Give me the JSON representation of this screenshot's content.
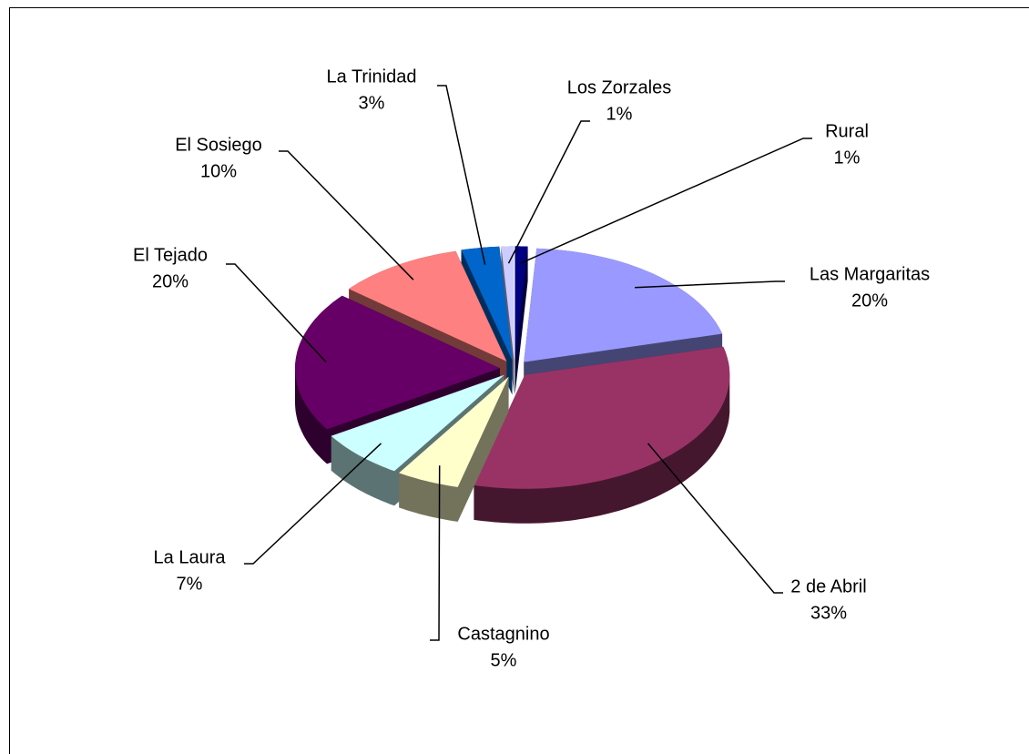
{
  "chart_data": {
    "type": "pie",
    "categories": [
      "Rural",
      "Las Margaritas",
      "2 de Abril",
      "Castagnino",
      "La Laura",
      "El Tejado",
      "El Sosiego",
      "La Trinidad",
      "Los Zorzales"
    ],
    "values": [
      1,
      20,
      33,
      5,
      7,
      20,
      10,
      3,
      1
    ],
    "value_labels": [
      "1%",
      "20%",
      "33%",
      "5%",
      "7%",
      "20%",
      "10%",
      "3%",
      "1%"
    ],
    "colors": [
      "#000080",
      "#9999ff",
      "#993366",
      "#ffffcc",
      "#ccffff",
      "#660066",
      "#ff8080",
      "#0066cc",
      "#ccccff"
    ]
  }
}
